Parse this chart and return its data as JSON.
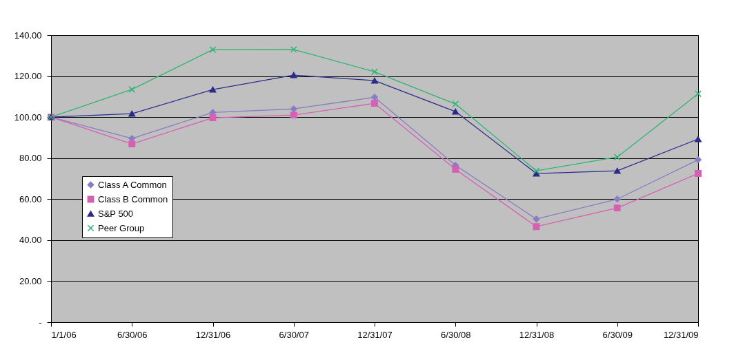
{
  "chart_data": {
    "type": "line",
    "categories": [
      "1/1/06",
      "6/30/06",
      "12/31/06",
      "6/30/07",
      "12/31/07",
      "6/30/08",
      "12/31/08",
      "6/30/09",
      "12/31/09"
    ],
    "series": [
      {
        "name": "Class A Common",
        "color": "#8a7cc4",
        "marker": "diamond",
        "values": [
          100,
          89.6,
          102.3,
          104,
          109.7,
          76.5,
          50.3,
          60,
          79.2
        ]
      },
      {
        "name": "Class B Common",
        "color": "#d660b4",
        "marker": "square",
        "values": [
          100,
          86.9,
          99.7,
          101,
          106.7,
          74.5,
          46.6,
          55.7,
          72.5
        ]
      },
      {
        "name": "S&P 500",
        "color": "#2b2b8c",
        "marker": "triangle",
        "values": [
          100,
          101.7,
          113.4,
          120.5,
          117.8,
          102.7,
          72.5,
          73.8,
          89.3
        ]
      },
      {
        "name": "Peer Group",
        "color": "#2db573",
        "marker": "cross",
        "values": [
          100,
          113.5,
          132.9,
          133,
          122.1,
          106.4,
          73.8,
          80.5,
          111.4
        ]
      }
    ],
    "ylim": [
      0,
      140
    ],
    "yticks": [
      {
        "value": 0,
        "label": "-"
      },
      {
        "value": 20,
        "label": "20.00"
      },
      {
        "value": 40,
        "label": "40.00"
      },
      {
        "value": 60,
        "label": "60.00"
      },
      {
        "value": 80,
        "label": "80.00"
      },
      {
        "value": 100,
        "label": "100.00"
      },
      {
        "value": 120,
        "label": "120.00"
      },
      {
        "value": 140,
        "label": "140.00"
      }
    ],
    "grid": "y",
    "legend": "left"
  }
}
